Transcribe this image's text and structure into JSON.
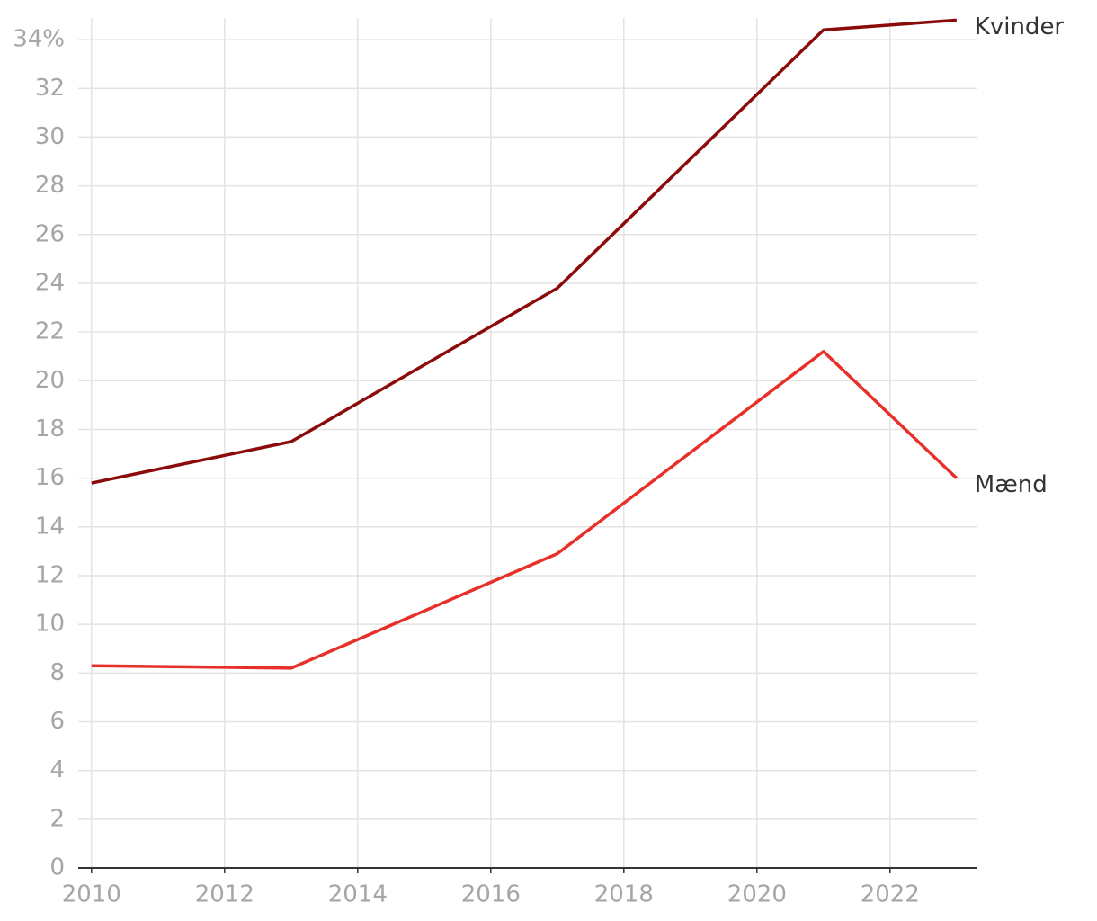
{
  "chart_data": {
    "type": "line",
    "x": [
      2010,
      2013,
      2017,
      2021,
      2023
    ],
    "series": [
      {
        "name": "Kvinder",
        "color": "#8b0a0a",
        "values": [
          15.8,
          17.5,
          23.8,
          34.4,
          34.8
        ]
      },
      {
        "name": "Mænd",
        "color": "#e8302a",
        "values": [
          8.3,
          8.2,
          12.9,
          21.2,
          16.0
        ]
      }
    ],
    "xlim": [
      2009.8,
      2023.3
    ],
    "xticks": [
      2010,
      2012,
      2014,
      2016,
      2018,
      2020,
      2022
    ],
    "ylim": [
      0,
      35
    ],
    "yticks": [
      0,
      2,
      4,
      6,
      8,
      10,
      12,
      14,
      16,
      18,
      20,
      22,
      24,
      26,
      28,
      30,
      32,
      {
        "value": 34,
        "label": "34%"
      }
    ],
    "grid": true
  }
}
